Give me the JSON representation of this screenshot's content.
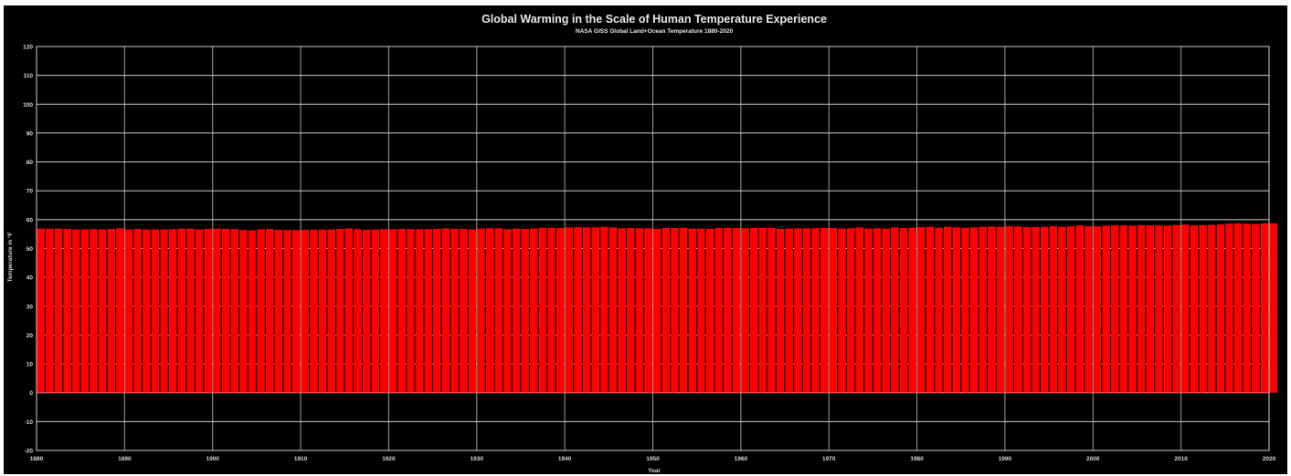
{
  "chart_data": {
    "type": "bar",
    "title": "Global Warming in the Scale of Human Temperature Experience",
    "subtitle": "NASA GISS Global Land+Ocean Temperature 1880-2020",
    "xlabel": "Year",
    "ylabel": "Temperature in °F",
    "xlim": [
      1880,
      2020
    ],
    "ylim": [
      -20,
      120
    ],
    "x_ticks": [
      1880,
      1890,
      1900,
      1910,
      1920,
      1930,
      1940,
      1950,
      1960,
      1970,
      1980,
      1990,
      2000,
      2010,
      2020
    ],
    "y_ticks": [
      -20,
      -10,
      0,
      10,
      20,
      30,
      40,
      50,
      60,
      70,
      80,
      90,
      100,
      110,
      120
    ],
    "grid": true,
    "colors": {
      "background": "#000000",
      "bar": "#ff0000",
      "grid": "#d0d0d0",
      "text": "#e0e0e0"
    },
    "years": [
      1880,
      1881,
      1882,
      1883,
      1884,
      1885,
      1886,
      1887,
      1888,
      1889,
      1890,
      1891,
      1892,
      1893,
      1894,
      1895,
      1896,
      1897,
      1898,
      1899,
      1900,
      1901,
      1902,
      1903,
      1904,
      1905,
      1906,
      1907,
      1908,
      1909,
      1910,
      1911,
      1912,
      1913,
      1914,
      1915,
      1916,
      1917,
      1918,
      1919,
      1920,
      1921,
      1922,
      1923,
      1924,
      1925,
      1926,
      1927,
      1928,
      1929,
      1930,
      1931,
      1932,
      1933,
      1934,
      1935,
      1936,
      1937,
      1938,
      1939,
      1940,
      1941,
      1942,
      1943,
      1944,
      1945,
      1946,
      1947,
      1948,
      1949,
      1950,
      1951,
      1952,
      1953,
      1954,
      1955,
      1956,
      1957,
      1958,
      1959,
      1960,
      1961,
      1962,
      1963,
      1964,
      1965,
      1966,
      1967,
      1968,
      1969,
      1970,
      1971,
      1972,
      1973,
      1974,
      1975,
      1976,
      1977,
      1978,
      1979,
      1980,
      1981,
      1982,
      1983,
      1984,
      1985,
      1986,
      1987,
      1988,
      1989,
      1990,
      1991,
      1992,
      1993,
      1994,
      1995,
      1996,
      1997,
      1998,
      1999,
      2000,
      2001,
      2002,
      2003,
      2004,
      2005,
      2006,
      2007,
      2008,
      2009,
      2010,
      2011,
      2012,
      2013,
      2014,
      2015,
      2016,
      2017,
      2018,
      2019,
      2020
    ],
    "values": [
      56.9,
      56.9,
      56.9,
      56.8,
      56.6,
      56.6,
      56.7,
      56.6,
      56.8,
      57.0,
      56.6,
      56.8,
      56.6,
      56.6,
      56.6,
      56.7,
      56.9,
      56.9,
      56.6,
      56.8,
      56.9,
      56.8,
      56.7,
      56.4,
      56.3,
      56.6,
      56.8,
      56.5,
      56.4,
      56.4,
      56.5,
      56.5,
      56.6,
      56.6,
      56.8,
      57.0,
      56.7,
      56.5,
      56.6,
      56.7,
      56.7,
      56.8,
      56.7,
      56.7,
      56.7,
      56.8,
      57.0,
      56.8,
      56.8,
      56.6,
      56.9,
      57.0,
      57.0,
      56.7,
      56.9,
      56.8,
      56.9,
      57.2,
      57.2,
      57.1,
      57.3,
      57.4,
      57.3,
      57.3,
      57.5,
      57.3,
      57.0,
      57.1,
      57.0,
      57.0,
      56.8,
      57.1,
      57.1,
      57.2,
      56.9,
      56.9,
      56.8,
      57.1,
      57.2,
      57.1,
      57.0,
      57.1,
      57.1,
      57.1,
      56.8,
      56.9,
      57.0,
      57.0,
      57.0,
      57.1,
      57.1,
      56.9,
      57.0,
      57.3,
      56.9,
      57.0,
      56.9,
      57.3,
      57.1,
      57.2,
      57.4,
      57.5,
      57.2,
      57.5,
      57.3,
      57.2,
      57.3,
      57.5,
      57.6,
      57.5,
      57.7,
      57.6,
      57.4,
      57.4,
      57.5,
      57.7,
      57.5,
      57.7,
      58.0,
      57.7,
      57.7,
      57.9,
      58.0,
      58.0,
      57.9,
      58.1,
      58.0,
      58.0,
      57.9,
      58.1,
      58.3,
      58.0,
      58.1,
      58.2,
      58.3,
      58.6,
      58.7,
      58.6,
      58.5,
      58.7,
      58.7
    ]
  }
}
